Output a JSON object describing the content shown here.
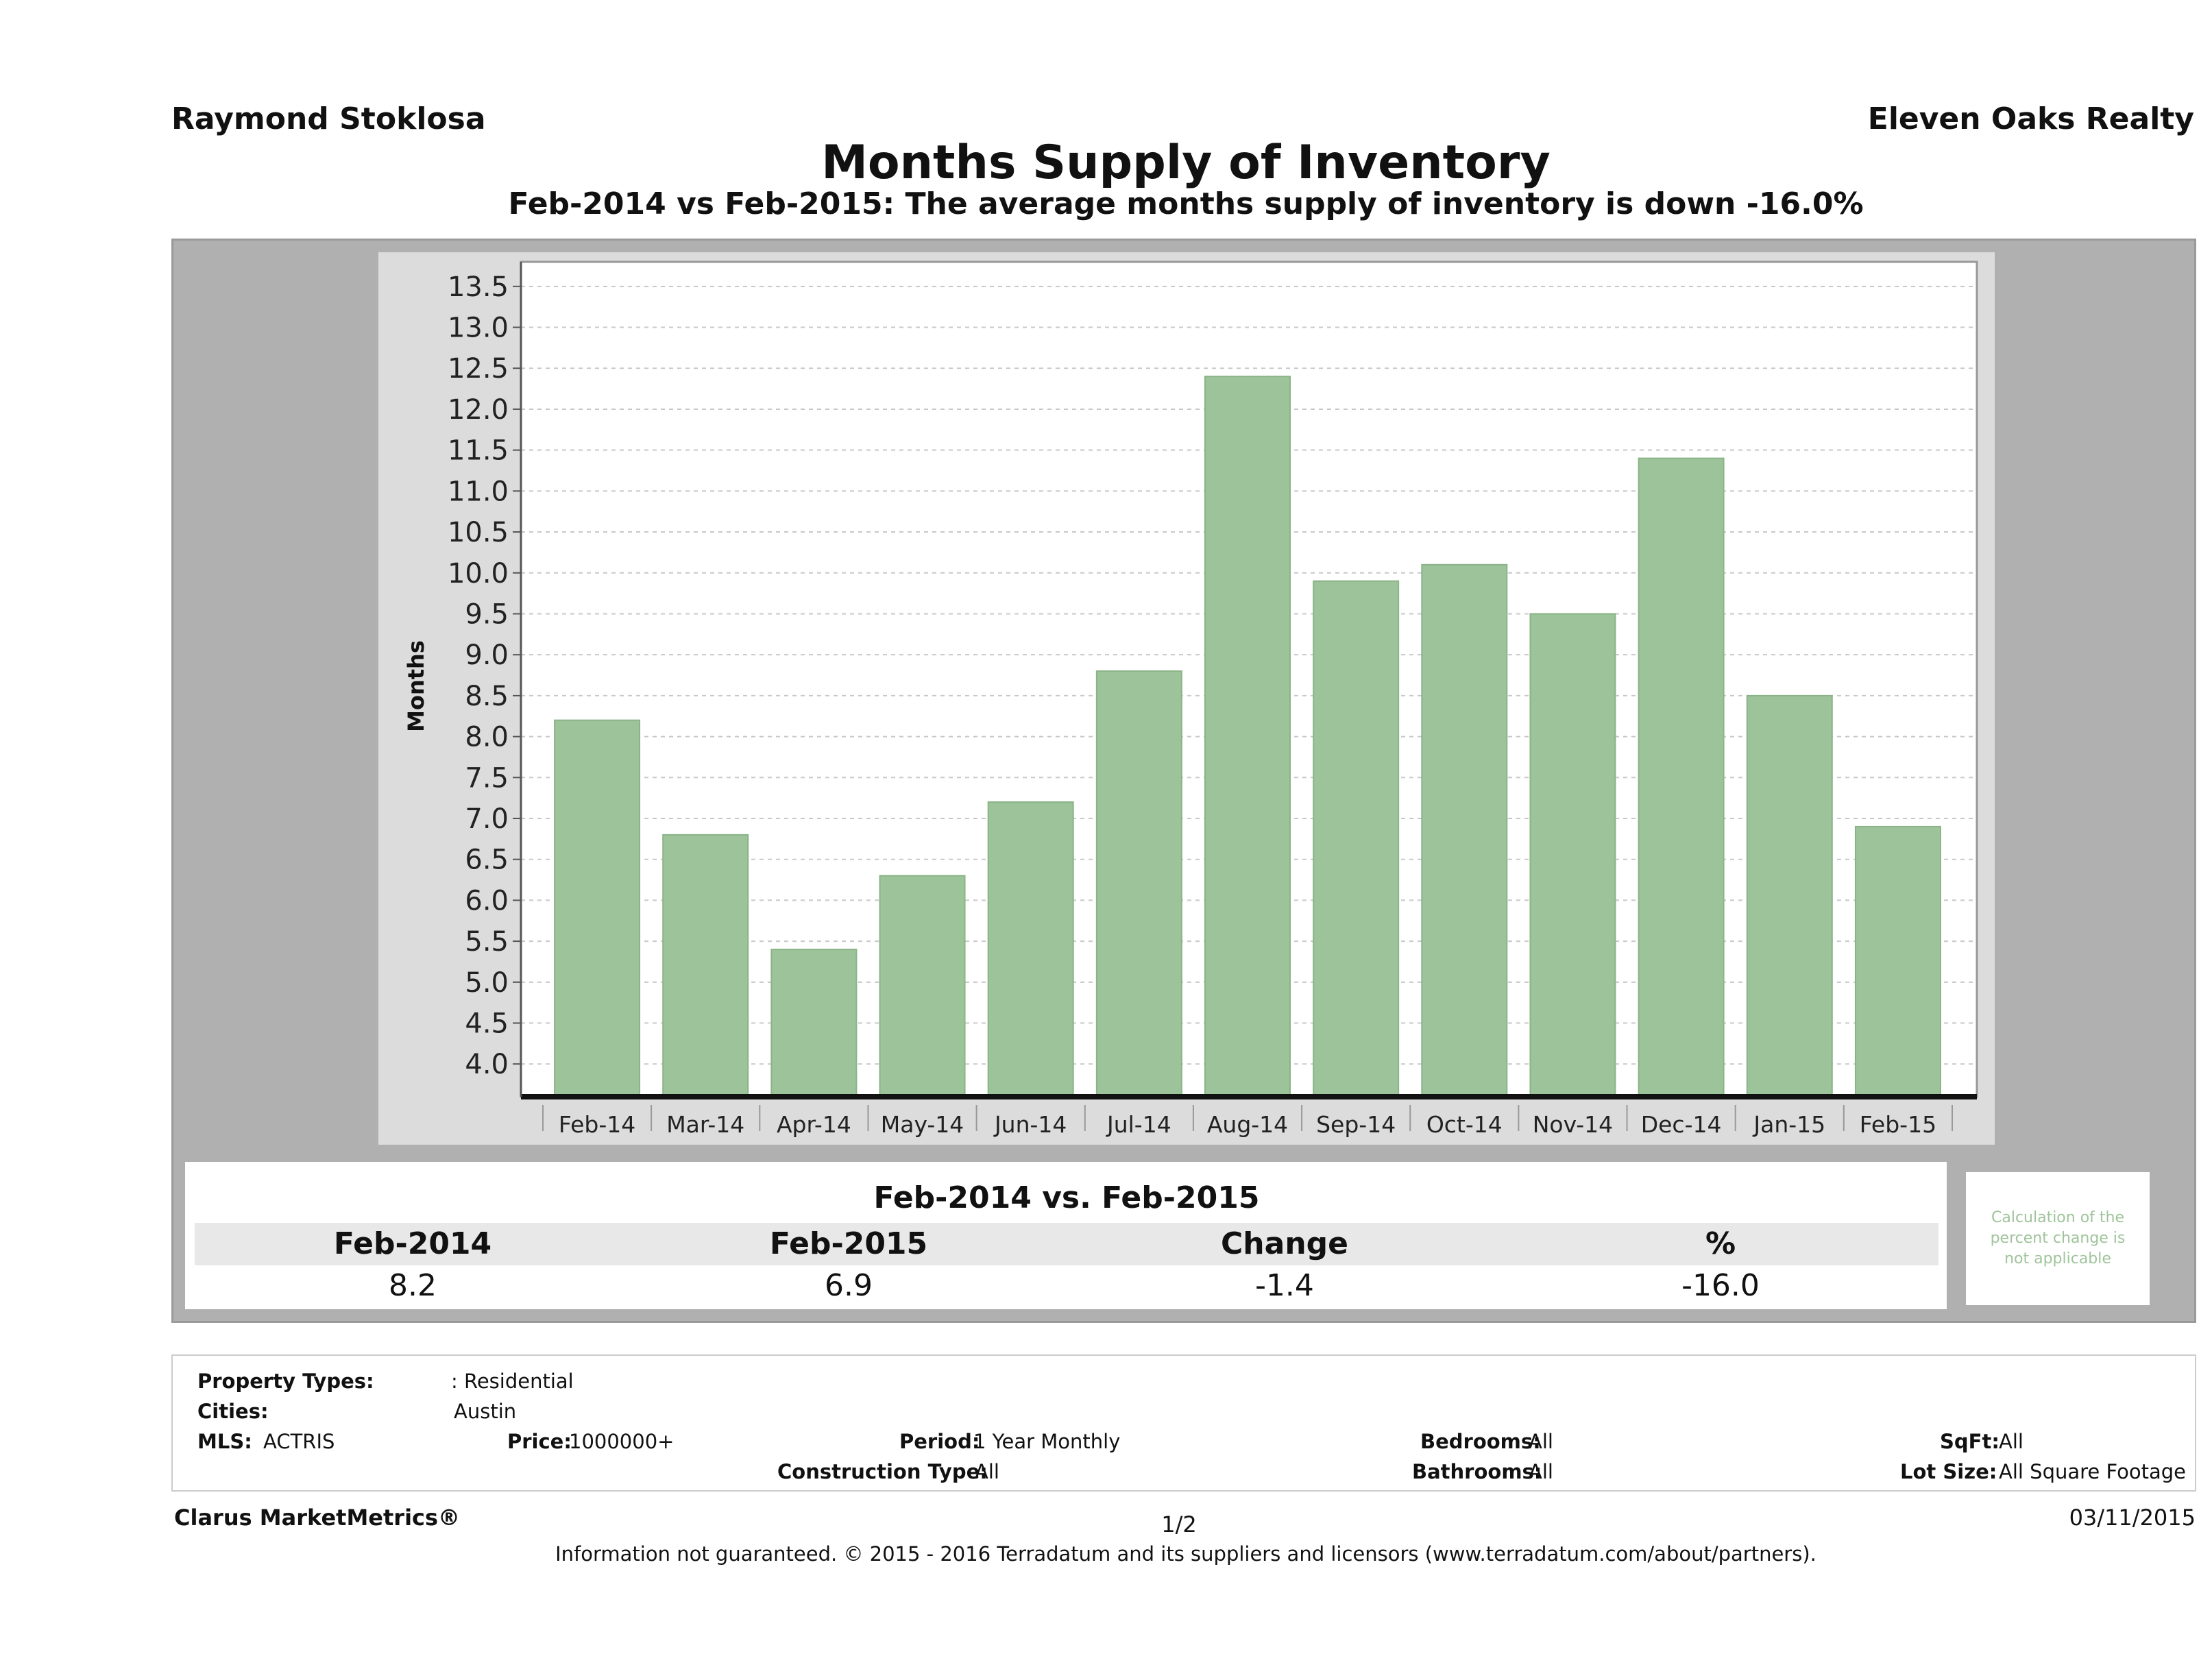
{
  "header": {
    "agent_name": "Raymond Stoklosa",
    "brokerage": "Eleven Oaks Realty"
  },
  "chart_data": {
    "type": "bar",
    "title": "Months Supply of Inventory",
    "subtitle": "Feb-2014 vs Feb-2015: The average months supply of inventory is down -16.0%",
    "xlabel": "",
    "ylabel": "Months",
    "categories": [
      "Feb-14",
      "Mar-14",
      "Apr-14",
      "May-14",
      "Jun-14",
      "Jul-14",
      "Aug-14",
      "Sep-14",
      "Oct-14",
      "Nov-14",
      "Dec-14",
      "Jan-15",
      "Feb-15"
    ],
    "values": [
      8.2,
      6.8,
      5.4,
      6.3,
      7.2,
      8.8,
      12.4,
      9.9,
      10.1,
      9.5,
      11.4,
      8.5,
      6.9
    ],
    "ylim": [
      3.6,
      13.8
    ],
    "yticks": [
      "13.5",
      "13.0",
      "12.5",
      "12.0",
      "11.5",
      "11.0",
      "10.5",
      "10.0",
      "9.5",
      "9.0",
      "8.5",
      "8.0",
      "7.5",
      "7.0",
      "6.5",
      "6.0",
      "5.5",
      "5.0",
      "4.5",
      "4.0"
    ],
    "grid": true,
    "bar_color": "#9dc39a"
  },
  "comparison": {
    "title": "Feb-2014 vs. Feb-2015",
    "headers": [
      "Feb-2014",
      "Feb-2015",
      "Change",
      "%"
    ],
    "values": [
      "8.2",
      "6.9",
      "-1.4",
      "-16.0"
    ],
    "note": "Calculation of the percent change is not applicable"
  },
  "criteria": {
    "property_types_label": "Property Types:",
    "property_types": ": Residential",
    "cities_label": "Cities:",
    "cities": "Austin",
    "mls_label": "MLS:",
    "mls": "ACTRIS",
    "price_label": "Price:",
    "price": "1000000+",
    "period_label": "Period:",
    "period": "1 Year Monthly",
    "construction_label": "Construction Type:",
    "construction": "All",
    "bedrooms_label": "Bedrooms:",
    "bedrooms": "All",
    "bathrooms_label": "Bathrooms:",
    "bathrooms": "All",
    "sqft_label": "SqFt:",
    "sqft": "All",
    "lot_label": "Lot Size:",
    "lot": "All Square Footage"
  },
  "footer": {
    "brand": "Clarus MarketMetrics®",
    "page": "1/2",
    "date": "03/11/2015",
    "disclaimer": "Information not guaranteed. © 2015 - 2016 Terradatum and its suppliers and licensors (www.terradatum.com/about/partners)."
  }
}
